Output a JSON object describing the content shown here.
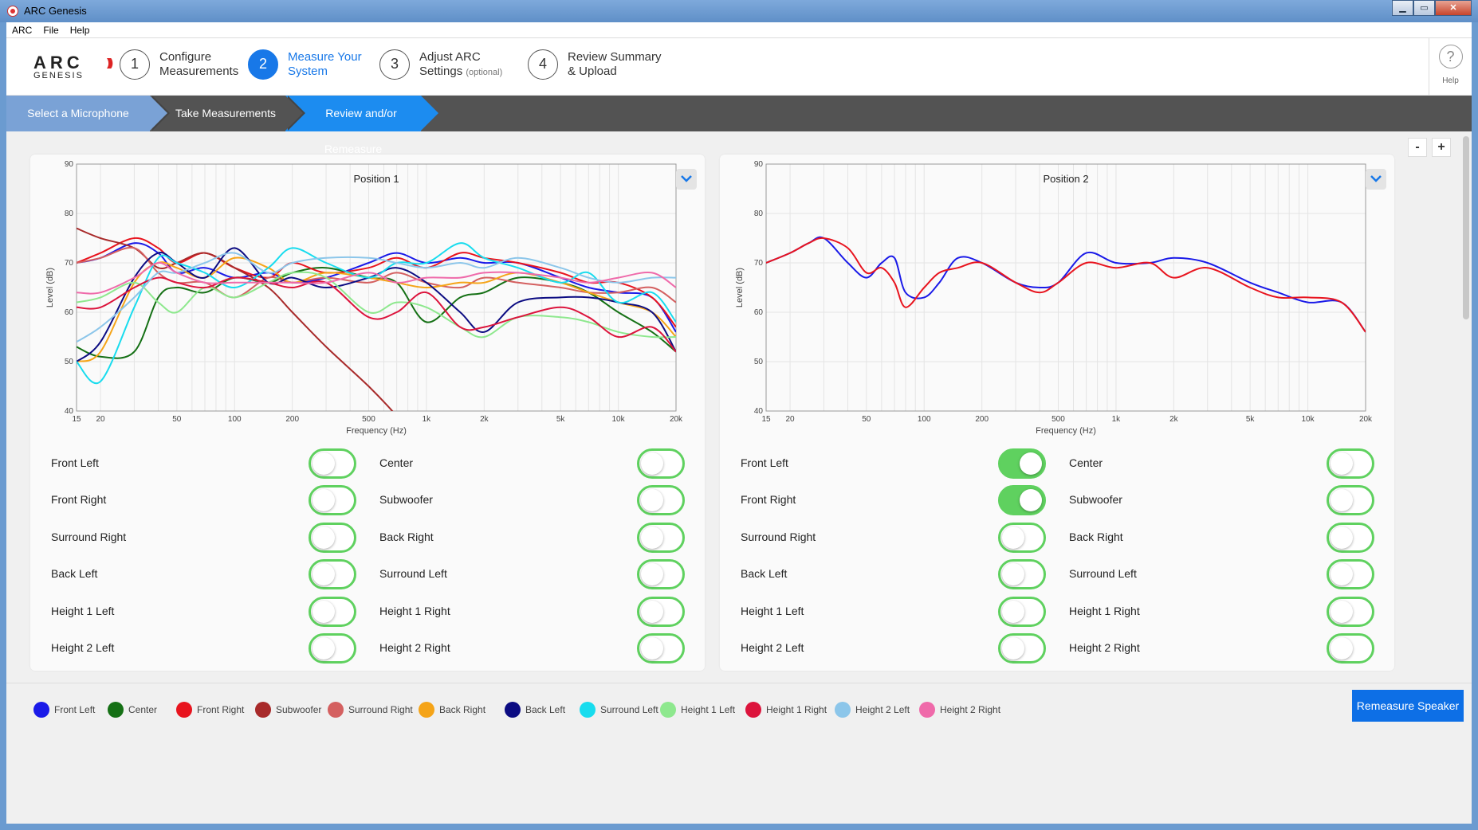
{
  "window": {
    "title": "ARC Genesis",
    "controls": [
      "▁",
      "▭",
      "✕"
    ]
  },
  "menu": [
    "ARC",
    "File",
    "Help"
  ],
  "logo": {
    "line1": "ARC",
    "line2": "GENESIS"
  },
  "steps": [
    {
      "num": "1",
      "line1": "Configure",
      "line2": "Measurements",
      "note": ""
    },
    {
      "num": "2",
      "line1": "Measure Your",
      "line2": "System",
      "note": ""
    },
    {
      "num": "3",
      "line1": "Adjust ARC",
      "line2": "Settings",
      "note": "(optional)"
    },
    {
      "num": "4",
      "line1": "Review Summary",
      "line2": "& Upload",
      "note": ""
    }
  ],
  "help": {
    "glyph": "?",
    "label": "Help"
  },
  "breadcrumbs": [
    "Select a Microphone",
    "Take Measurements",
    "Review and/or Remeasure"
  ],
  "zoom": {
    "minus": "-",
    "plus": "+"
  },
  "colors": {
    "Front Left": "#1a1ae8",
    "Center": "#157015",
    "Front Right": "#e8141e",
    "Subwoofer": "#a82a2a",
    "Surround Right": "#d46060",
    "Back Right": "#f5a418",
    "Back Left": "#0c0c82",
    "Surround Left": "#18dcee",
    "Height 1 Left": "#8ee88e",
    "Height 1 Right": "#dc143c",
    "Height 2 Left": "#8cc6ea",
    "Height 2 Right": "#ef6aaa",
    "toggle_on": "#5fd15f",
    "accent": "#1878e8"
  },
  "charts": [
    {
      "title": "Position 1",
      "xlabel": "Frequency (Hz)",
      "ylabel": "Level (dB)",
      "yticks": [
        "90",
        "80",
        "70",
        "60",
        "50",
        "40"
      ],
      "xticks": [
        "15",
        "20",
        "50",
        "100",
        "200",
        "500",
        "1k",
        "2k",
        "5k",
        "10k",
        "20k"
      ]
    },
    {
      "title": "Position 2",
      "xlabel": "Frequency (Hz)",
      "ylabel": "Level (dB)",
      "yticks": [
        "90",
        "80",
        "70",
        "60",
        "50",
        "40"
      ],
      "xticks": [
        "15",
        "20",
        "50",
        "100",
        "200",
        "500",
        "1k",
        "2k",
        "5k",
        "10k",
        "20k"
      ]
    }
  ],
  "chart_data": [
    {
      "type": "line",
      "title": "Position 1",
      "xlabel": "Frequency (Hz)",
      "ylabel": "Level (dB)",
      "xscale": "log",
      "xlim": [
        15,
        20000
      ],
      "ylim": [
        40,
        90
      ],
      "grid": true,
      "x": [
        15,
        20,
        30,
        40,
        50,
        70,
        100,
        150,
        200,
        300,
        500,
        700,
        1000,
        1500,
        2000,
        3000,
        5000,
        7000,
        10000,
        15000,
        20000
      ],
      "series": [
        {
          "name": "Front Left",
          "values": [
            70,
            71,
            74,
            72,
            68,
            69,
            67,
            68,
            66,
            67,
            70,
            72,
            70,
            71,
            70,
            70,
            67,
            65,
            64,
            63,
            56
          ]
        },
        {
          "name": "Center",
          "values": [
            53,
            51,
            52,
            63,
            65,
            64,
            67,
            66,
            68,
            69,
            67,
            66,
            58,
            63,
            64,
            67,
            66,
            64,
            60,
            56,
            52
          ]
        },
        {
          "name": "Front Right",
          "values": [
            70,
            72,
            75,
            73,
            70,
            72,
            69,
            67,
            70,
            68,
            69,
            71,
            69,
            72,
            71,
            70,
            68,
            66,
            66,
            63,
            57
          ]
        },
        {
          "name": "Subwoofer",
          "values": [
            77,
            75,
            73,
            69,
            70,
            72,
            69,
            65,
            60,
            53,
            45,
            39,
            null,
            null,
            null,
            null,
            null,
            null,
            null,
            null,
            null
          ]
        },
        {
          "name": "Surround Right",
          "values": [
            70,
            71,
            73,
            68,
            66,
            66,
            63,
            67,
            66,
            67,
            66,
            68,
            66,
            65,
            67,
            66,
            65,
            64,
            64,
            65,
            62
          ]
        },
        {
          "name": "Back Right",
          "values": [
            50,
            52,
            66,
            70,
            69,
            67,
            71,
            69,
            66,
            68,
            67,
            66,
            65,
            66,
            66,
            68,
            66,
            64,
            62,
            60,
            55
          ]
        },
        {
          "name": "Back Left",
          "values": [
            50,
            54,
            67,
            72,
            70,
            67,
            73,
            66,
            67,
            65,
            67,
            69,
            66,
            60,
            56,
            62,
            63,
            63,
            62,
            60,
            52
          ]
        },
        {
          "name": "Surround Left",
          "values": [
            50,
            46,
            61,
            71,
            70,
            68,
            65,
            69,
            73,
            70,
            67,
            70,
            70,
            74,
            71,
            69,
            66,
            68,
            62,
            64,
            58
          ]
        },
        {
          "name": "Height 1 Left",
          "values": [
            62,
            63,
            66,
            62,
            60,
            65,
            63,
            66,
            68,
            67,
            60,
            62,
            61,
            57,
            55,
            59,
            59,
            58,
            56,
            55,
            55
          ]
        },
        {
          "name": "Height 1 Right",
          "values": [
            61,
            61,
            65,
            67,
            66,
            65,
            67,
            66,
            65,
            66,
            59,
            60,
            64,
            57,
            57,
            59,
            61,
            59,
            55,
            57,
            52
          ]
        },
        {
          "name": "Height 2 Left",
          "values": [
            54,
            57,
            63,
            68,
            68,
            70,
            72,
            68,
            70,
            71,
            71,
            70,
            69,
            70,
            69,
            71,
            69,
            67,
            66,
            67,
            67
          ]
        },
        {
          "name": "Height 2 Right",
          "values": [
            64,
            64,
            67,
            70,
            68,
            66,
            66,
            66,
            66,
            66,
            68,
            66,
            67,
            67,
            68,
            68,
            67,
            66,
            67,
            68,
            65
          ]
        }
      ]
    },
    {
      "type": "line",
      "title": "Position 2",
      "xlabel": "Frequency (Hz)",
      "ylabel": "Level (dB)",
      "xscale": "log",
      "xlim": [
        15,
        20000
      ],
      "ylim": [
        40,
        90
      ],
      "grid": true,
      "x": [
        15,
        20,
        25,
        30,
        40,
        50,
        60,
        70,
        80,
        100,
        120,
        150,
        200,
        300,
        400,
        500,
        700,
        1000,
        1500,
        2000,
        3000,
        5000,
        7000,
        10000,
        15000,
        20000
      ],
      "series": [
        {
          "name": "Front Left",
          "values": [
            70,
            72,
            74,
            75,
            70,
            67,
            70,
            71,
            64,
            63,
            66,
            71,
            70,
            66,
            65,
            66,
            72,
            70,
            70,
            71,
            70,
            66,
            64,
            62,
            62,
            56
          ]
        },
        {
          "name": "Front Right",
          "values": [
            70,
            72,
            74,
            75,
            73,
            68,
            69,
            66,
            61,
            65,
            68,
            69,
            70,
            66,
            64,
            66,
            70,
            69,
            70,
            67,
            69,
            65,
            63,
            63,
            62,
            56
          ]
        }
      ]
    }
  ],
  "toggle_panels": [
    {
      "items": [
        {
          "label": "Front Left",
          "on": false
        },
        {
          "label": "Center",
          "on": false
        },
        {
          "label": "Front Right",
          "on": false
        },
        {
          "label": "Subwoofer",
          "on": false
        },
        {
          "label": "Surround Right",
          "on": false
        },
        {
          "label": "Back Right",
          "on": false
        },
        {
          "label": "Back Left",
          "on": false
        },
        {
          "label": "Surround Left",
          "on": false
        },
        {
          "label": "Height 1 Left",
          "on": false
        },
        {
          "label": "Height 1 Right",
          "on": false
        },
        {
          "label": "Height 2 Left",
          "on": false
        },
        {
          "label": "Height 2 Right",
          "on": false
        }
      ]
    },
    {
      "items": [
        {
          "label": "Front Left",
          "on": true
        },
        {
          "label": "Center",
          "on": false
        },
        {
          "label": "Front Right",
          "on": true
        },
        {
          "label": "Subwoofer",
          "on": false
        },
        {
          "label": "Surround Right",
          "on": false
        },
        {
          "label": "Back Right",
          "on": false
        },
        {
          "label": "Back Left",
          "on": false
        },
        {
          "label": "Surround Left",
          "on": false
        },
        {
          "label": "Height 1 Left",
          "on": false
        },
        {
          "label": "Height 1 Right",
          "on": false
        },
        {
          "label": "Height 2 Left",
          "on": false
        },
        {
          "label": "Height 2 Right",
          "on": false
        }
      ]
    }
  ],
  "legend": [
    "Front Left",
    "Center",
    "Front Right",
    "Subwoofer",
    "Surround Right",
    "Back Right",
    "Back Left",
    "Surround Left",
    "Height 1 Left",
    "Height 1 Right",
    "Height 2 Left",
    "Height 2 Right"
  ],
  "remeasure_label": "Remeasure Speaker"
}
